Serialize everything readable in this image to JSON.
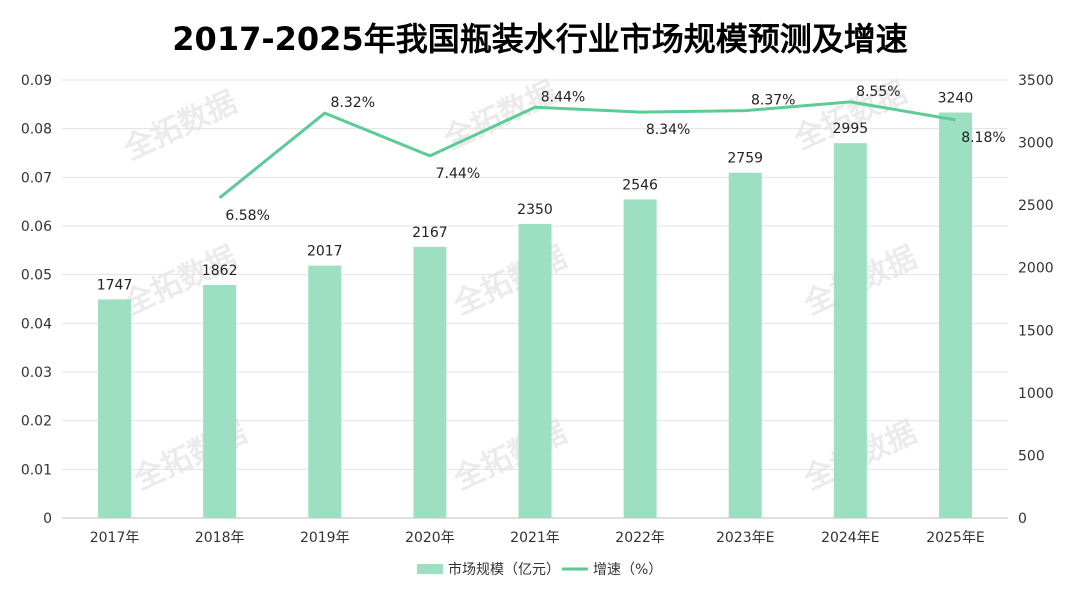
{
  "title": "2017-2025年我国瓶装水行业市场规模预测及增速",
  "watermark": "全拓数据",
  "colors": {
    "bar": "#9ddfc1",
    "line": "#5ccb96",
    "grid": "#e3e3e3",
    "axis": "#bfbfbf"
  },
  "chart_data": {
    "type": "bar",
    "title": "2017-2025年我国瓶装水行业市场规模预测及增速",
    "categories": [
      "2017年",
      "2018年",
      "2019年",
      "2020年",
      "2021年",
      "2022年",
      "2023年E",
      "2024年E",
      "2025年E"
    ],
    "series": [
      {
        "name": "市场规模（亿元）",
        "type": "bar",
        "axis": "right",
        "values": [
          1747,
          1862,
          2017,
          2167,
          2350,
          2546,
          2759,
          2995,
          3240
        ],
        "labels": [
          "1747",
          "1862",
          "2017",
          "2167",
          "2350",
          "2546",
          "2759",
          "2995",
          "3240"
        ]
      },
      {
        "name": "增速（%）",
        "type": "line",
        "axis": "right-scaled",
        "values": [
          null,
          6.58,
          8.32,
          7.44,
          8.44,
          8.34,
          8.37,
          8.55,
          8.18
        ],
        "labels": [
          "",
          "6.58%",
          "8.32%",
          "7.44%",
          "8.44%",
          "8.34%",
          "8.37%",
          "8.55%",
          "8.18%"
        ]
      }
    ],
    "left_axis": {
      "min": 0,
      "max": 0.09,
      "ticks": [
        "0",
        "0.01",
        "0.02",
        "0.03",
        "0.04",
        "0.05",
        "0.06",
        "0.07",
        "0.08",
        "0.09"
      ]
    },
    "right_axis": {
      "min": 0,
      "max": 3500,
      "ticks": [
        "0",
        "500",
        "1000",
        "1500",
        "2000",
        "2500",
        "3000",
        "3500"
      ]
    },
    "line_scale": {
      "min": 0,
      "max": 9
    },
    "grid": true,
    "legend_position": "bottom-center"
  }
}
